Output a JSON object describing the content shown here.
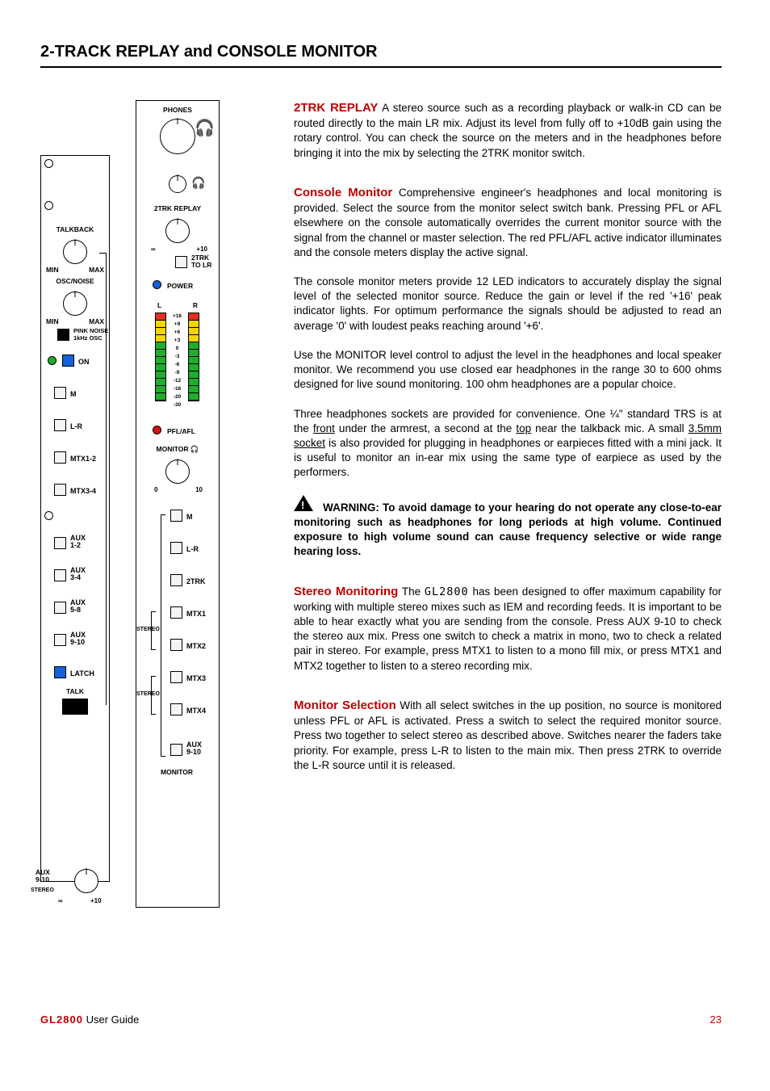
{
  "page": {
    "title": "2-TRACK REPLAY and CONSOLE MONITOR",
    "footer_brand": "GL2800",
    "footer_text": " User Guide",
    "page_number": "23"
  },
  "text": {
    "s1_head": "2TRK REPLAY",
    "s1_body": "   A stereo source such as a recording playback or walk-in CD can be routed directly to the main LR mix. Adjust its level from fully off to +10dB gain using the rotary control. You can check the source on the meters and in the headphones before bringing it into the mix by selecting the 2TRK monitor switch.",
    "s2_head": "Console Monitor",
    "s2_body": "    Comprehensive engineer's headphones and local monitoring is provided.  Select the source from the monitor select switch bank. Pressing PFL or AFL elsewhere on the console automatically overrides the current monitor source with the signal from the channel or master selection.  The red PFL/AFL active indicator illuminates and the console meters display the active signal.",
    "s2_p2": "The console monitor meters provide 12 LED indicators to accurately display the signal level of the selected monitor source.  Reduce the gain or level if the red '+16' peak indicator lights.  For optimum performance the signals should be adjusted to read an average '0' with loudest peaks reaching around '+6'.",
    "s2_p3": "Use the MONITOR level control to adjust the level in the headphones and local speaker monitor.  We recommend you use closed ear headphones in the range 30 to 600 ohms designed for live sound monitoring.  100 ohm headphones are a popular choice.",
    "s2_p4a": "Three headphones sockets are provided for convenience. One ¼\" standard TRS is at the ",
    "s2_p4_u1": "front",
    "s2_p4b": " under the armrest, a second at the ",
    "s2_p4_u2": "top",
    "s2_p4c": " near the talkback mic. A small ",
    "s2_p4_u3": "3.5mm socket",
    "s2_p4d": " is also provided for plugging in headphones or earpieces fitted with a mini jack. It is useful to monitor an in-ear mix using the same type of earpiece as used by the performers.",
    "warn_head": "WARNING:",
    "warn_body": "     To avoid damage to your hearing do not operate any close-to-ear monitoring such as headphones for long periods at high volume.   Continued exposure to high volume sound can cause frequency selective or wide range hearing loss.",
    "s3_head": "Stereo Monitoring",
    "s3_a": "   The ",
    "s3_brand": "GL2800",
    "s3_b": " has been designed to offer maximum capability for working with multiple stereo mixes such as IEM and recording feeds. It is important to be able to hear exactly what you are sending from the console. Press AUX 9-10 to check the stereo aux mix. Press one switch to check a matrix in mono, two to check a related pair in stereo. For example, press MTX1 to listen to a mono fill mix, or press MTX1 and MTX2 together to listen to a stereo recording mix.",
    "s4_head": "Monitor Selection",
    "s4_body": "   With all select switches in the up position, no source is monitored unless PFL or AFL is activated. Press a switch to select the required monitor source. Press two together to select stereo as described above. Switches nearer the faders take priority. For example, press L-R to listen to the main mix. Then press 2TRK to override the L-R source until it is released."
  },
  "diagram": {
    "left_panel": {
      "talkback": "TALKBACK",
      "min": "MIN",
      "max": "MAX",
      "oscnoise": "OSC/NOISE",
      "pink": "PINK NOISE",
      "osc1k": "1kHz OSC",
      "on": "ON",
      "buttons": [
        "M",
        "L-R",
        "MTX1-2",
        "MTX3-4",
        "AUX\n1-2",
        "AUX\n3-4",
        "AUX\n5-8",
        "AUX\n9-10"
      ],
      "latch": "LATCH",
      "talk": "TALK"
    },
    "right_panel": {
      "phones": "PHONES",
      "replay": "2TRK REPLAY",
      "replay_off": "∞",
      "replay_max": "+10",
      "to_lr": "2TRK\nTO LR",
      "power": "POWER",
      "L": "L",
      "R": "R",
      "meter_vals": [
        "+16",
        "+9",
        "+6",
        "+3",
        "0",
        "-3",
        "-6",
        "-9",
        "-12",
        "-16",
        "-20",
        "-30"
      ],
      "meter_colors": [
        "#e03020",
        "#f5d400",
        "#f5d400",
        "#f5d400",
        "#1fae2c",
        "#1fae2c",
        "#1fae2c",
        "#1fae2c",
        "#1fae2c",
        "#1fae2c",
        "#1fae2c",
        "#1fae2c"
      ],
      "pflafl": "PFL/AFL",
      "monitor": "MONITOR",
      "mon_min": "0",
      "mon_max": "10",
      "buttons": [
        "M",
        "L-R",
        "2TRK",
        "MTX1",
        "MTX2",
        "MTX3",
        "MTX4",
        "AUX\n9-10"
      ],
      "stereo": "STEREO",
      "monitor_foot": "MONITOR"
    },
    "aux_block": {
      "label": "AUX\n9-10",
      "stereo": "STEREO",
      "min": "∞",
      "max": "+10"
    }
  }
}
